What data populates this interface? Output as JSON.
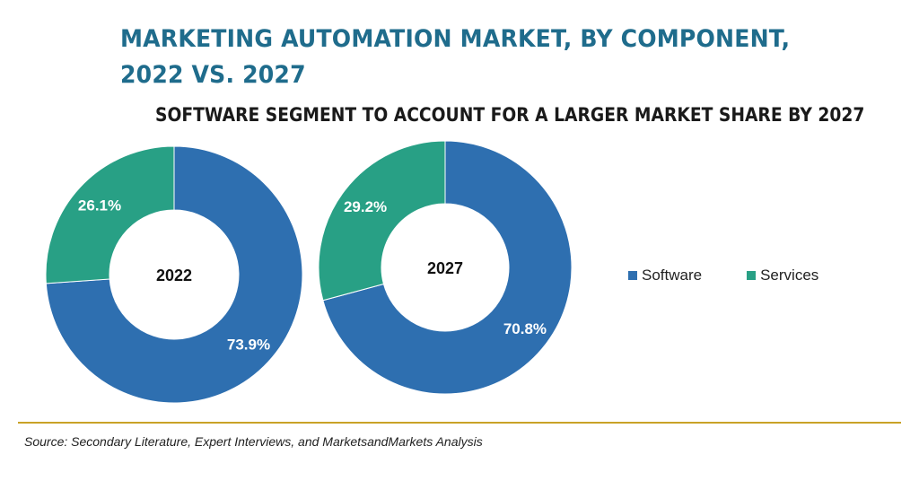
{
  "title_line1": "MARKETING AUTOMATION MARKET, BY COMPONENT,",
  "title_line2": "2022 VS. 2027",
  "subtitle": "SOFTWARE SEGMENT TO ACCOUNT FOR A LARGER MARKET SHARE BY 2027",
  "legend": [
    {
      "label": "Software",
      "color": "#2e6fb0"
    },
    {
      "label": "Services",
      "color": "#28a085"
    }
  ],
  "source": "Source: Secondary Literature, Expert Interviews, and MarketsandMarkets Analysis",
  "chart_data": [
    {
      "type": "pie",
      "center_label": "2022",
      "slices": [
        {
          "name": "Software",
          "value": 73.9,
          "label": "73.9%"
        },
        {
          "name": "Services",
          "value": 26.1,
          "label": "26.1%"
        }
      ]
    },
    {
      "type": "pie",
      "center_label": "2027",
      "slices": [
        {
          "name": "Software",
          "value": 70.8,
          "label": "70.8%"
        },
        {
          "name": "Services",
          "value": 29.2,
          "label": "29.2%"
        }
      ]
    }
  ]
}
